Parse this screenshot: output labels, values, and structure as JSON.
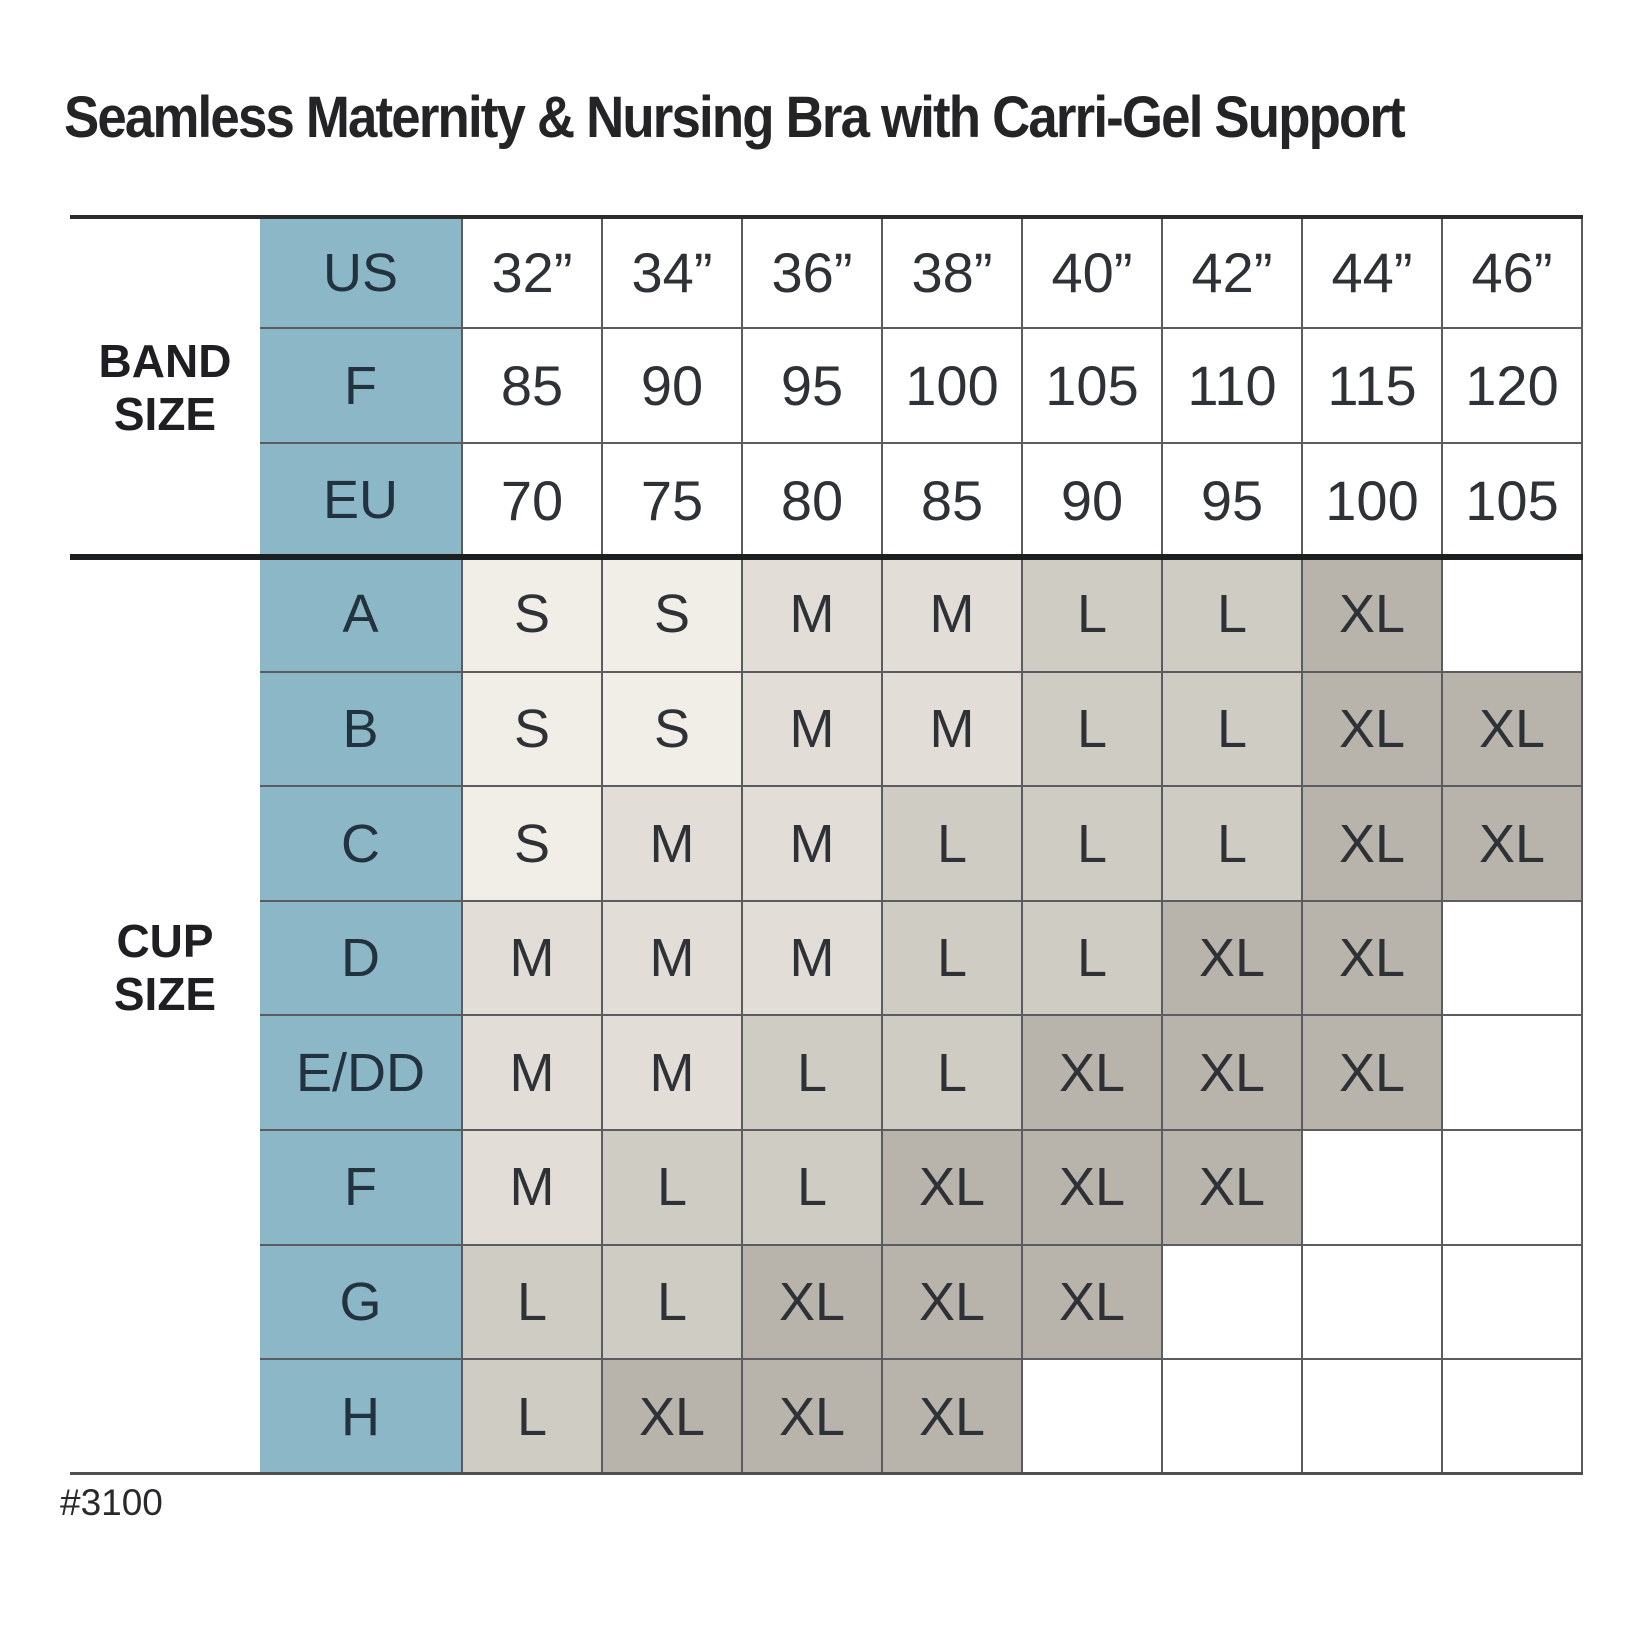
{
  "title": "Seamless Maternity & Nursing Bra with Carri-Gel Support",
  "footnote": "#3100",
  "chart_data": {
    "type": "table",
    "title": "Seamless Maternity & Nursing Bra with Carri-Gel Support",
    "product_code": "#3100",
    "band_label_lines": [
      "BAND",
      "SIZE"
    ],
    "cup_label_lines": [
      "CUP",
      "SIZE"
    ],
    "band_rows": [
      {
        "label": "US",
        "values": [
          "32”",
          "34”",
          "36”",
          "38”",
          "40”",
          "42”",
          "44”",
          "46”"
        ]
      },
      {
        "label": "F",
        "values": [
          "85",
          "90",
          "95",
          "100",
          "105",
          "110",
          "115",
          "120"
        ]
      },
      {
        "label": "EU",
        "values": [
          "70",
          "75",
          "80",
          "85",
          "90",
          "95",
          "100",
          "105"
        ]
      }
    ],
    "cup_rows": [
      {
        "label": "A",
        "values": [
          "S",
          "S",
          "M",
          "M",
          "L",
          "L",
          "XL",
          ""
        ]
      },
      {
        "label": "B",
        "values": [
          "S",
          "S",
          "M",
          "M",
          "L",
          "L",
          "XL",
          "XL"
        ]
      },
      {
        "label": "C",
        "values": [
          "S",
          "M",
          "M",
          "L",
          "L",
          "L",
          "XL",
          "XL"
        ]
      },
      {
        "label": "D",
        "values": [
          "M",
          "M",
          "M",
          "L",
          "L",
          "XL",
          "XL",
          ""
        ]
      },
      {
        "label": "E/DD",
        "values": [
          "M",
          "M",
          "L",
          "L",
          "XL",
          "XL",
          "XL",
          ""
        ]
      },
      {
        "label": "F",
        "values": [
          "M",
          "L",
          "L",
          "XL",
          "XL",
          "XL",
          "",
          ""
        ]
      },
      {
        "label": "G",
        "values": [
          "L",
          "L",
          "XL",
          "XL",
          "XL",
          "",
          "",
          ""
        ]
      },
      {
        "label": "H",
        "values": [
          "L",
          "XL",
          "XL",
          "XL",
          "",
          "",
          "",
          ""
        ]
      }
    ],
    "size_codes": [
      "S",
      "M",
      "L",
      "XL"
    ]
  },
  "colors": {
    "header_blue": "#8cb7c7",
    "size_s": "#f1eee8",
    "size_m": "#e2ded7",
    "size_l": "#cfccc4",
    "size_xl": "#b8b4ab",
    "grid_line": "#5b5c60",
    "divider_black": "#1d1e20"
  }
}
